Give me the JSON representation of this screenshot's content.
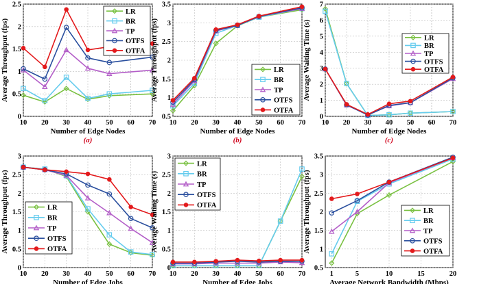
{
  "colors": {
    "LR": "#7ac142",
    "BR": "#66ccee",
    "TP": "#b35ec8",
    "OTFS": "#2a4f9e",
    "OTFA": "#e31a1c"
  },
  "series_names": [
    "LR",
    "BR",
    "TP",
    "OTFS",
    "OTFA"
  ],
  "chart_data": [
    {
      "id": "a",
      "type": "line",
      "caption": "(a)",
      "xlabel": "Number of Edge Nodes",
      "ylabel": "Average Throughput (fps)",
      "x": [
        10,
        20,
        30,
        40,
        50,
        70
      ],
      "xlim": [
        10,
        70
      ],
      "xticks": [
        10,
        20,
        30,
        40,
        50,
        60,
        70
      ],
      "ylim": [
        0,
        2.5
      ],
      "yticks": [
        0,
        0.5,
        1,
        1.5,
        2,
        2.5
      ],
      "ytick_labels": [
        "0",
        "0.5",
        "1",
        "1.5",
        "2",
        "2.5"
      ],
      "grid": true,
      "legend_position": "top-right",
      "series": [
        {
          "name": "LR",
          "values": [
            0.47,
            0.32,
            0.62,
            0.38,
            0.46,
            0.5
          ]
        },
        {
          "name": "BR",
          "values": [
            0.62,
            0.35,
            0.87,
            0.4,
            0.5,
            0.58
          ]
        },
        {
          "name": "TP",
          "values": [
            1.03,
            0.66,
            1.48,
            1.07,
            0.95,
            1.03
          ]
        },
        {
          "name": "OTFS",
          "values": [
            1.06,
            0.83,
            1.98,
            1.3,
            1.2,
            1.32
          ]
        },
        {
          "name": "OTFA",
          "values": [
            1.52,
            1.1,
            2.38,
            1.48,
            1.55,
            1.62
          ]
        }
      ]
    },
    {
      "id": "b",
      "type": "line",
      "caption": "(b)",
      "xlabel": "Number of Edge Nodes",
      "ylabel": "Average Throughput (fps)",
      "x": [
        10,
        20,
        30,
        40,
        50,
        70
      ],
      "xlim": [
        10,
        70
      ],
      "xticks": [
        10,
        20,
        30,
        40,
        50,
        60,
        70
      ],
      "ylim": [
        0.5,
        3.5
      ],
      "yticks": [
        0.5,
        1,
        1.5,
        2,
        2.5,
        3,
        3.5
      ],
      "ytick_labels": [
        "0.5",
        "1",
        "1.5",
        "2",
        "2.5",
        "3",
        "3.5"
      ],
      "grid": true,
      "legend_position": "bottom-right",
      "series": [
        {
          "name": "LR",
          "values": [
            0.65,
            1.32,
            2.45,
            2.92,
            3.15,
            3.35
          ]
        },
        {
          "name": "BR",
          "values": [
            0.78,
            1.38,
            2.72,
            2.93,
            3.15,
            3.38
          ]
        },
        {
          "name": "TP",
          "values": [
            0.82,
            1.45,
            2.78,
            2.93,
            3.17,
            3.38
          ]
        },
        {
          "name": "OTFS",
          "values": [
            0.88,
            1.48,
            2.8,
            2.93,
            3.17,
            3.4
          ]
        },
        {
          "name": "OTFA",
          "values": [
            0.93,
            1.52,
            2.82,
            2.95,
            3.18,
            3.43
          ]
        }
      ]
    },
    {
      "id": "c",
      "type": "line",
      "caption": "(c)",
      "xlabel": "Number of Edge Nodes",
      "ylabel": "Average Waiting Time (s)",
      "x": [
        10,
        20,
        30,
        40,
        50,
        70
      ],
      "xlim": [
        10,
        70
      ],
      "xticks": [
        10,
        20,
        30,
        40,
        50,
        60,
        70
      ],
      "ylim": [
        0,
        7
      ],
      "yticks": [
        0,
        1,
        2,
        3,
        4,
        5,
        6,
        7
      ],
      "ytick_labels": [
        "0",
        "1",
        "2",
        "3",
        "4",
        "5",
        "6",
        "7"
      ],
      "grid": true,
      "legend_position": "top-right",
      "series": [
        {
          "name": "LR",
          "values": [
            6.7,
            2.05,
            0.05,
            0.1,
            0.2,
            0.3
          ]
        },
        {
          "name": "BR",
          "values": [
            6.55,
            2.05,
            0.05,
            0.1,
            0.2,
            0.3
          ]
        },
        {
          "name": "TP",
          "values": [
            2.95,
            0.7,
            0.1,
            0.65,
            0.85,
            2.35
          ]
        },
        {
          "name": "OTFS",
          "values": [
            2.95,
            0.72,
            0.08,
            0.68,
            0.85,
            2.4
          ]
        },
        {
          "name": "OTFA",
          "values": [
            2.95,
            0.75,
            0.12,
            0.78,
            0.95,
            2.45
          ]
        }
      ]
    },
    {
      "id": "d",
      "type": "line",
      "caption": "(d)",
      "xlabel": "Number of Edge Jobs",
      "ylabel": "Average Throughput (fps)",
      "x": [
        10,
        20,
        30,
        40,
        50,
        60,
        70
      ],
      "xlim": [
        10,
        70
      ],
      "xticks": [
        10,
        20,
        30,
        40,
        50,
        60,
        70
      ],
      "ylim": [
        0,
        3
      ],
      "yticks": [
        0,
        0.5,
        1,
        1.5,
        2,
        2.5,
        3
      ],
      "ytick_labels": [
        "0",
        "0.5",
        "1",
        "1.5",
        "2",
        "2.5",
        "3"
      ],
      "grid": true,
      "legend_position": "bottom-left",
      "series": [
        {
          "name": "LR",
          "values": [
            2.7,
            2.65,
            2.45,
            1.5,
            0.63,
            0.4,
            0.33
          ]
        },
        {
          "name": "BR",
          "values": [
            2.7,
            2.65,
            2.47,
            1.58,
            0.88,
            0.42,
            0.35
          ]
        },
        {
          "name": "TP",
          "values": [
            2.7,
            2.63,
            2.48,
            1.87,
            1.47,
            1.05,
            0.67
          ]
        },
        {
          "name": "OTFS",
          "values": [
            2.7,
            2.63,
            2.52,
            2.22,
            1.98,
            1.32,
            1.07
          ]
        },
        {
          "name": "OTFA",
          "values": [
            2.7,
            2.63,
            2.58,
            2.52,
            2.37,
            1.63,
            1.42
          ]
        }
      ]
    },
    {
      "id": "e",
      "type": "line",
      "caption": "(e)",
      "xlabel": "Number of Edge Jobs",
      "ylabel": "Average Waiting Time (s)",
      "x": [
        10,
        20,
        30,
        40,
        50,
        60,
        70
      ],
      "xlim": [
        10,
        70
      ],
      "xticks": [
        10,
        20,
        30,
        40,
        50,
        60,
        70
      ],
      "ylim": [
        0,
        3
      ],
      "yticks": [
        0,
        0.5,
        1,
        1.5,
        2,
        2.5,
        3
      ],
      "ytick_labels": [
        "0",
        "0.5",
        "1",
        "1.5",
        "2",
        "2.5",
        "3"
      ],
      "grid": true,
      "legend_position": "top-left",
      "series": [
        {
          "name": "LR",
          "values": [
            0.05,
            0.05,
            0.05,
            0.05,
            0.05,
            1.25,
            2.45
          ]
        },
        {
          "name": "BR",
          "values": [
            0.05,
            0.05,
            0.05,
            0.05,
            0.05,
            1.25,
            2.65
          ]
        },
        {
          "name": "TP",
          "values": [
            0.1,
            0.1,
            0.12,
            0.12,
            0.12,
            0.15,
            0.13
          ]
        },
        {
          "name": "OTFS",
          "values": [
            0.12,
            0.12,
            0.15,
            0.17,
            0.15,
            0.17,
            0.17
          ]
        },
        {
          "name": "OTFA",
          "values": [
            0.15,
            0.15,
            0.17,
            0.2,
            0.18,
            0.2,
            0.2
          ]
        }
      ]
    },
    {
      "id": "f",
      "type": "line",
      "caption": "(f)",
      "xlabel": "Average Network Bandwidth (Mbps)",
      "ylabel": "Average Throughput (fps)",
      "x": [
        1,
        5,
        10,
        20
      ],
      "xlim": [
        0,
        20
      ],
      "xticks": [
        1,
        5,
        10,
        15,
        20
      ],
      "ylim": [
        0.5,
        3.5
      ],
      "yticks": [
        0.5,
        1,
        1.5,
        2,
        2.5,
        3,
        3.5
      ],
      "ytick_labels": [
        "0.5",
        "1",
        "1.5",
        "2",
        "2.5",
        "3",
        "3.5"
      ],
      "grid": true,
      "legend_position": "bottom-right",
      "series": [
        {
          "name": "LR",
          "values": [
            0.62,
            1.95,
            2.45,
            3.35
          ]
        },
        {
          "name": "BR",
          "values": [
            0.87,
            2.28,
            2.75,
            3.42
          ]
        },
        {
          "name": "TP",
          "values": [
            1.47,
            2.0,
            2.78,
            3.45
          ]
        },
        {
          "name": "OTFS",
          "values": [
            1.97,
            2.3,
            2.8,
            3.47
          ]
        },
        {
          "name": "OTFA",
          "values": [
            2.35,
            2.48,
            2.8,
            3.45
          ]
        }
      ]
    }
  ]
}
